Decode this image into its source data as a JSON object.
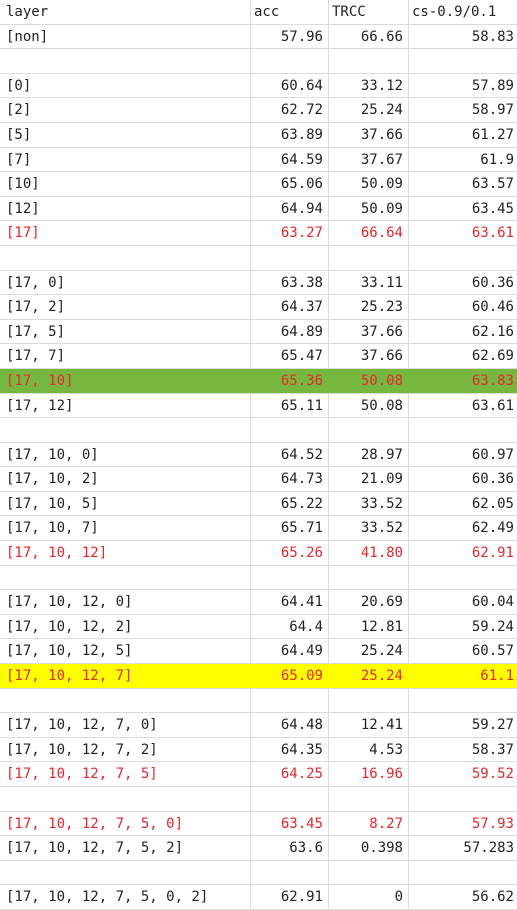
{
  "columns": [
    "layer",
    "acc",
    "TRCC",
    "cs-0.9/0.1"
  ],
  "colors": {
    "red_text": "#e8262b",
    "green_highlight": "#76b83f",
    "yellow_highlight": "#ffff00"
  },
  "rows": [
    {
      "cells": [
        "[non]",
        "57.96",
        "66.66",
        "58.83"
      ]
    },
    {
      "cells": [
        "",
        "",
        "",
        ""
      ]
    },
    {
      "cells": [
        "[0]",
        "60.64",
        "33.12",
        "57.89"
      ]
    },
    {
      "cells": [
        "[2]",
        "62.72",
        "25.24",
        "58.97"
      ]
    },
    {
      "cells": [
        "[5]",
        "63.89",
        "37.66",
        "61.27"
      ]
    },
    {
      "cells": [
        "[7]",
        "64.59",
        "37.67",
        "61.9"
      ]
    },
    {
      "cells": [
        "[10]",
        "65.06",
        "50.09",
        "63.57"
      ]
    },
    {
      "cells": [
        "[12]",
        "64.94",
        "50.09",
        "63.45"
      ]
    },
    {
      "cells": [
        "[17]",
        "63.27",
        "66.64",
        "63.61"
      ],
      "style": "red"
    },
    {
      "cells": [
        "",
        "",
        "",
        ""
      ]
    },
    {
      "cells": [
        "[17, 0]",
        "63.38",
        "33.11",
        "60.36"
      ]
    },
    {
      "cells": [
        "[17, 2]",
        "64.37",
        "25.23",
        "60.46"
      ]
    },
    {
      "cells": [
        "[17, 5]",
        "64.89",
        "37.66",
        "62.16"
      ]
    },
    {
      "cells": [
        "[17, 7]",
        "65.47",
        "37.66",
        "62.69"
      ]
    },
    {
      "cells": [
        "[17, 10]",
        "65.36",
        "50.08",
        "63.83"
      ],
      "style": "red green"
    },
    {
      "cells": [
        "[17, 12]",
        "65.11",
        "50.08",
        "63.61"
      ]
    },
    {
      "cells": [
        "",
        "",
        "",
        ""
      ]
    },
    {
      "cells": [
        "[17, 10, 0]",
        "64.52",
        "28.97",
        "60.97"
      ]
    },
    {
      "cells": [
        "[17, 10, 2]",
        "64.73",
        "21.09",
        "60.36"
      ]
    },
    {
      "cells": [
        "[17, 10, 5]",
        "65.22",
        "33.52",
        "62.05"
      ]
    },
    {
      "cells": [
        "[17, 10, 7]",
        "65.71",
        "33.52",
        "62.49"
      ]
    },
    {
      "cells": [
        "[17, 10, 12]",
        "65.26",
        "41.80",
        "62.91"
      ],
      "style": "red"
    },
    {
      "cells": [
        "",
        "",
        "",
        ""
      ]
    },
    {
      "cells": [
        "[17, 10, 12, 0]",
        "64.41",
        "20.69",
        "60.04"
      ]
    },
    {
      "cells": [
        "[17, 10, 12, 2]",
        "64.4",
        "12.81",
        "59.24"
      ]
    },
    {
      "cells": [
        "[17, 10, 12, 5]",
        "64.49",
        "25.24",
        "60.57"
      ]
    },
    {
      "cells": [
        "[17, 10, 12, 7]",
        "65.09",
        "25.24",
        "61.1"
      ],
      "style": "red yellow"
    },
    {
      "cells": [
        "",
        "",
        "",
        ""
      ]
    },
    {
      "cells": [
        "[17, 10, 12, 7, 0]",
        "64.48",
        "12.41",
        "59.27"
      ]
    },
    {
      "cells": [
        "[17, 10, 12, 7, 2]",
        "64.35",
        "4.53",
        "58.37"
      ]
    },
    {
      "cells": [
        "[17, 10, 12, 7, 5]",
        "64.25",
        "16.96",
        "59.52"
      ],
      "style": "red"
    },
    {
      "cells": [
        "",
        "",
        "",
        ""
      ]
    },
    {
      "cells": [
        "[17, 10, 12, 7, 5, 0]",
        "63.45",
        "8.27",
        "57.93"
      ],
      "style": "red"
    },
    {
      "cells": [
        "[17, 10, 12, 7, 5, 2]",
        "63.6",
        "0.398",
        "57.283"
      ]
    },
    {
      "cells": [
        "",
        "",
        "",
        ""
      ]
    },
    {
      "cells": [
        "[17, 10, 12, 7, 5, 0, 2]",
        "62.91",
        "0",
        "56.62"
      ]
    }
  ]
}
